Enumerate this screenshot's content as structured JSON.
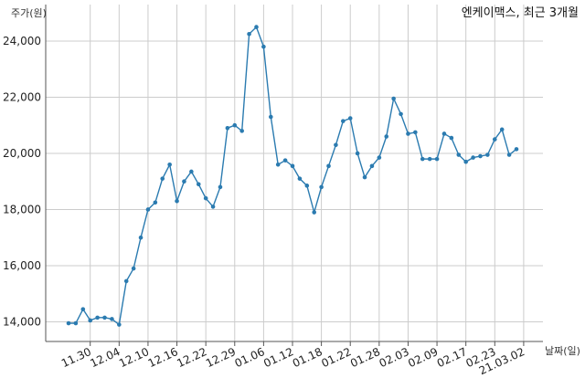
{
  "chart_data": {
    "type": "line",
    "title": "엔케이맥스, 최근 3개월",
    "ylabel": "주가(원)",
    "xlabel": "날짜(일)",
    "ylim": [
      13300,
      25300
    ],
    "yticks": [
      14000,
      16000,
      18000,
      20000,
      22000,
      24000
    ],
    "ytick_labels": [
      "14,000",
      "16,000",
      "18,000",
      "20,000",
      "22,000",
      "24,000"
    ],
    "grid": true,
    "color": "#2b7bb0",
    "xtick_labels": [
      "11.30",
      "12.04",
      "12.10",
      "12.16",
      "12.22",
      "12.29",
      "01.06",
      "01.12",
      "01.18",
      "01.22",
      "01.28",
      "02.03",
      "02.09",
      "02.17",
      "02.23",
      "21.03.02"
    ],
    "xtick_indices": [
      3,
      7,
      11,
      15,
      19,
      23,
      27,
      31,
      35,
      39,
      43,
      47,
      51,
      55,
      59,
      63
    ],
    "series": [
      {
        "values": [
          13950,
          13950,
          14450,
          14050,
          14150,
          14150,
          14100,
          13900,
          15450,
          15900,
          17000,
          18000,
          18250,
          19100,
          19600,
          18300,
          19000,
          19350,
          18900,
          18400,
          18100,
          18800,
          20900,
          21000,
          20800,
          24250,
          24500,
          23800,
          21300,
          19600,
          19750,
          19550,
          19100,
          18850,
          17900,
          18800,
          19550,
          20300,
          21150,
          21250,
          20000,
          19150,
          19550,
          19850,
          20600,
          21950,
          21400,
          20700,
          20750,
          19800,
          19800,
          19800,
          20700,
          20550,
          19950,
          19700,
          19850,
          19900,
          19950,
          20500,
          20850,
          19950,
          20150
        ]
      }
    ]
  }
}
